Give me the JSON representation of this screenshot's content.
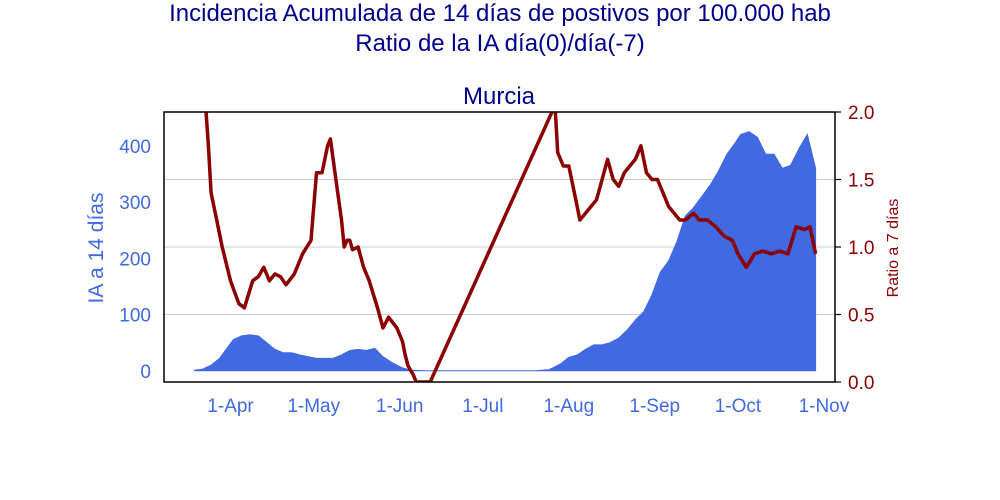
{
  "suptitle": {
    "line1": "Incidencia Acumulada de 14 días de postivos por 100.000 hab",
    "line2": "Ratio de la IA día(0)/día(-7)"
  },
  "colors": {
    "title": "#00008b",
    "area": "#4169e1",
    "left_axis": "#4169e1",
    "ratio_line": "#8b0000",
    "grid": "#cccccc",
    "frame": "#000000"
  },
  "chart_data": {
    "type": "area",
    "title": "Murcia",
    "x_ticks": [
      {
        "date": "2020-04-01",
        "label": "1-Apr"
      },
      {
        "date": "2020-05-01",
        "label": "1-May"
      },
      {
        "date": "2020-06-01",
        "label": "1-Jun"
      },
      {
        "date": "2020-07-01",
        "label": "1-Jul"
      },
      {
        "date": "2020-08-01",
        "label": "1-Aug"
      },
      {
        "date": "2020-09-01",
        "label": "1-Sep"
      },
      {
        "date": "2020-10-01",
        "label": "1-Oct"
      },
      {
        "date": "2020-11-01",
        "label": "1-Nov"
      }
    ],
    "xlim": [
      "2020-03-08",
      "2020-11-05"
    ],
    "y_left": {
      "label": "IA a 14 días",
      "lim": [
        -20,
        460
      ],
      "ticks": [
        0,
        100,
        200,
        300,
        400
      ]
    },
    "y_right": {
      "label": "Ratio a 7 días",
      "lim": [
        0,
        2.0
      ],
      "ticks": [
        0.0,
        0.5,
        1.0,
        1.5,
        2.0
      ],
      "tick_labels": [
        "0.0",
        "0.5",
        "1.0",
        "1.5",
        "2.0"
      ],
      "grid": true
    },
    "series": [
      {
        "axis": "left",
        "render": "area",
        "points": [
          [
            "2020-03-19",
            1
          ],
          [
            "2020-03-22",
            3
          ],
          [
            "2020-03-25",
            10
          ],
          [
            "2020-03-28",
            22
          ],
          [
            "2020-03-31",
            42
          ],
          [
            "2020-04-02",
            55
          ],
          [
            "2020-04-05",
            62
          ],
          [
            "2020-04-08",
            64
          ],
          [
            "2020-04-11",
            62
          ],
          [
            "2020-04-14",
            50
          ],
          [
            "2020-04-17",
            38
          ],
          [
            "2020-04-20",
            32
          ],
          [
            "2020-04-23",
            32
          ],
          [
            "2020-04-26",
            28
          ],
          [
            "2020-04-29",
            25
          ],
          [
            "2020-05-02",
            22
          ],
          [
            "2020-05-05",
            22
          ],
          [
            "2020-05-08",
            22
          ],
          [
            "2020-05-11",
            28
          ],
          [
            "2020-05-14",
            36
          ],
          [
            "2020-05-17",
            38
          ],
          [
            "2020-05-20",
            36
          ],
          [
            "2020-05-23",
            40
          ],
          [
            "2020-05-26",
            25
          ],
          [
            "2020-05-29",
            15
          ],
          [
            "2020-06-02",
            5
          ],
          [
            "2020-06-05",
            1
          ],
          [
            "2020-06-10",
            0
          ],
          [
            "2020-07-01",
            0
          ],
          [
            "2020-07-20",
            0
          ],
          [
            "2020-07-25",
            2
          ],
          [
            "2020-07-29",
            12
          ],
          [
            "2020-08-01",
            24
          ],
          [
            "2020-08-04",
            28
          ],
          [
            "2020-08-07",
            38
          ],
          [
            "2020-08-10",
            46
          ],
          [
            "2020-08-13",
            46
          ],
          [
            "2020-08-16",
            50
          ],
          [
            "2020-08-19",
            58
          ],
          [
            "2020-08-22",
            72
          ],
          [
            "2020-08-25",
            90
          ],
          [
            "2020-08-28",
            105
          ],
          [
            "2020-08-31",
            135
          ],
          [
            "2020-09-03",
            175
          ],
          [
            "2020-09-06",
            195
          ],
          [
            "2020-09-09",
            230
          ],
          [
            "2020-09-12",
            275
          ],
          [
            "2020-09-15",
            290
          ],
          [
            "2020-09-18",
            310
          ],
          [
            "2020-09-21",
            330
          ],
          [
            "2020-09-24",
            355
          ],
          [
            "2020-09-27",
            385
          ],
          [
            "2020-09-30",
            405
          ],
          [
            "2020-10-02",
            420
          ],
          [
            "2020-10-05",
            425
          ],
          [
            "2020-10-08",
            415
          ],
          [
            "2020-10-11",
            385
          ],
          [
            "2020-10-14",
            385
          ],
          [
            "2020-10-17",
            360
          ],
          [
            "2020-10-20",
            365
          ],
          [
            "2020-10-23",
            395
          ],
          [
            "2020-10-26",
            420
          ],
          [
            "2020-10-29",
            360
          ]
        ]
      },
      {
        "axis": "right",
        "render": "line",
        "points": [
          [
            "2020-03-23",
            2.05
          ],
          [
            "2020-03-24",
            1.75
          ],
          [
            "2020-03-25",
            1.4
          ],
          [
            "2020-03-27",
            1.2
          ],
          [
            "2020-03-29",
            1.0
          ],
          [
            "2020-04-01",
            0.75
          ],
          [
            "2020-04-04",
            0.58
          ],
          [
            "2020-04-06",
            0.55
          ],
          [
            "2020-04-09",
            0.75
          ],
          [
            "2020-04-11",
            0.78
          ],
          [
            "2020-04-13",
            0.85
          ],
          [
            "2020-04-15",
            0.75
          ],
          [
            "2020-04-17",
            0.8
          ],
          [
            "2020-04-19",
            0.78
          ],
          [
            "2020-04-21",
            0.72
          ],
          [
            "2020-04-24",
            0.8
          ],
          [
            "2020-04-27",
            0.95
          ],
          [
            "2020-04-30",
            1.05
          ],
          [
            "2020-05-02",
            1.55
          ],
          [
            "2020-05-04",
            1.55
          ],
          [
            "2020-05-06",
            1.75
          ],
          [
            "2020-05-07",
            1.8
          ],
          [
            "2020-05-09",
            1.5
          ],
          [
            "2020-05-11",
            1.2
          ],
          [
            "2020-05-12",
            1.0
          ],
          [
            "2020-05-13",
            1.05
          ],
          [
            "2020-05-14",
            1.05
          ],
          [
            "2020-05-15",
            0.98
          ],
          [
            "2020-05-17",
            1.0
          ],
          [
            "2020-05-19",
            0.85
          ],
          [
            "2020-05-21",
            0.75
          ],
          [
            "2020-05-24",
            0.55
          ],
          [
            "2020-05-26",
            0.4
          ],
          [
            "2020-05-28",
            0.48
          ],
          [
            "2020-05-31",
            0.4
          ],
          [
            "2020-06-02",
            0.3
          ],
          [
            "2020-06-03",
            0.2
          ],
          [
            "2020-06-04",
            0.12
          ],
          [
            "2020-06-06",
            0.05
          ],
          [
            "2020-06-07",
            0.0
          ],
          [
            "2020-06-12",
            0.0
          ],
          [
            "2020-07-27",
            2.05
          ],
          [
            "2020-07-28",
            1.7
          ],
          [
            "2020-07-30",
            1.6
          ],
          [
            "2020-08-01",
            1.6
          ],
          [
            "2020-08-03",
            1.4
          ],
          [
            "2020-08-05",
            1.2
          ],
          [
            "2020-08-07",
            1.25
          ],
          [
            "2020-08-09",
            1.3
          ],
          [
            "2020-08-11",
            1.35
          ],
          [
            "2020-08-13",
            1.5
          ],
          [
            "2020-08-15",
            1.65
          ],
          [
            "2020-08-17",
            1.5
          ],
          [
            "2020-08-19",
            1.45
          ],
          [
            "2020-08-21",
            1.55
          ],
          [
            "2020-08-23",
            1.6
          ],
          [
            "2020-08-25",
            1.65
          ],
          [
            "2020-08-27",
            1.75
          ],
          [
            "2020-08-29",
            1.55
          ],
          [
            "2020-08-31",
            1.5
          ],
          [
            "2020-09-02",
            1.5
          ],
          [
            "2020-09-04",
            1.4
          ],
          [
            "2020-09-06",
            1.3
          ],
          [
            "2020-09-08",
            1.25
          ],
          [
            "2020-09-10",
            1.2
          ],
          [
            "2020-09-12",
            1.2
          ],
          [
            "2020-09-15",
            1.25
          ],
          [
            "2020-09-17",
            1.2
          ],
          [
            "2020-09-20",
            1.2
          ],
          [
            "2020-09-23",
            1.15
          ],
          [
            "2020-09-26",
            1.08
          ],
          [
            "2020-09-29",
            1.05
          ],
          [
            "2020-10-01",
            0.95
          ],
          [
            "2020-10-04",
            0.85
          ],
          [
            "2020-10-07",
            0.95
          ],
          [
            "2020-10-10",
            0.97
          ],
          [
            "2020-10-13",
            0.95
          ],
          [
            "2020-10-16",
            0.97
          ],
          [
            "2020-10-19",
            0.95
          ],
          [
            "2020-10-22",
            1.15
          ],
          [
            "2020-10-25",
            1.13
          ],
          [
            "2020-10-27",
            1.15
          ],
          [
            "2020-10-29",
            0.95
          ]
        ]
      }
    ]
  }
}
